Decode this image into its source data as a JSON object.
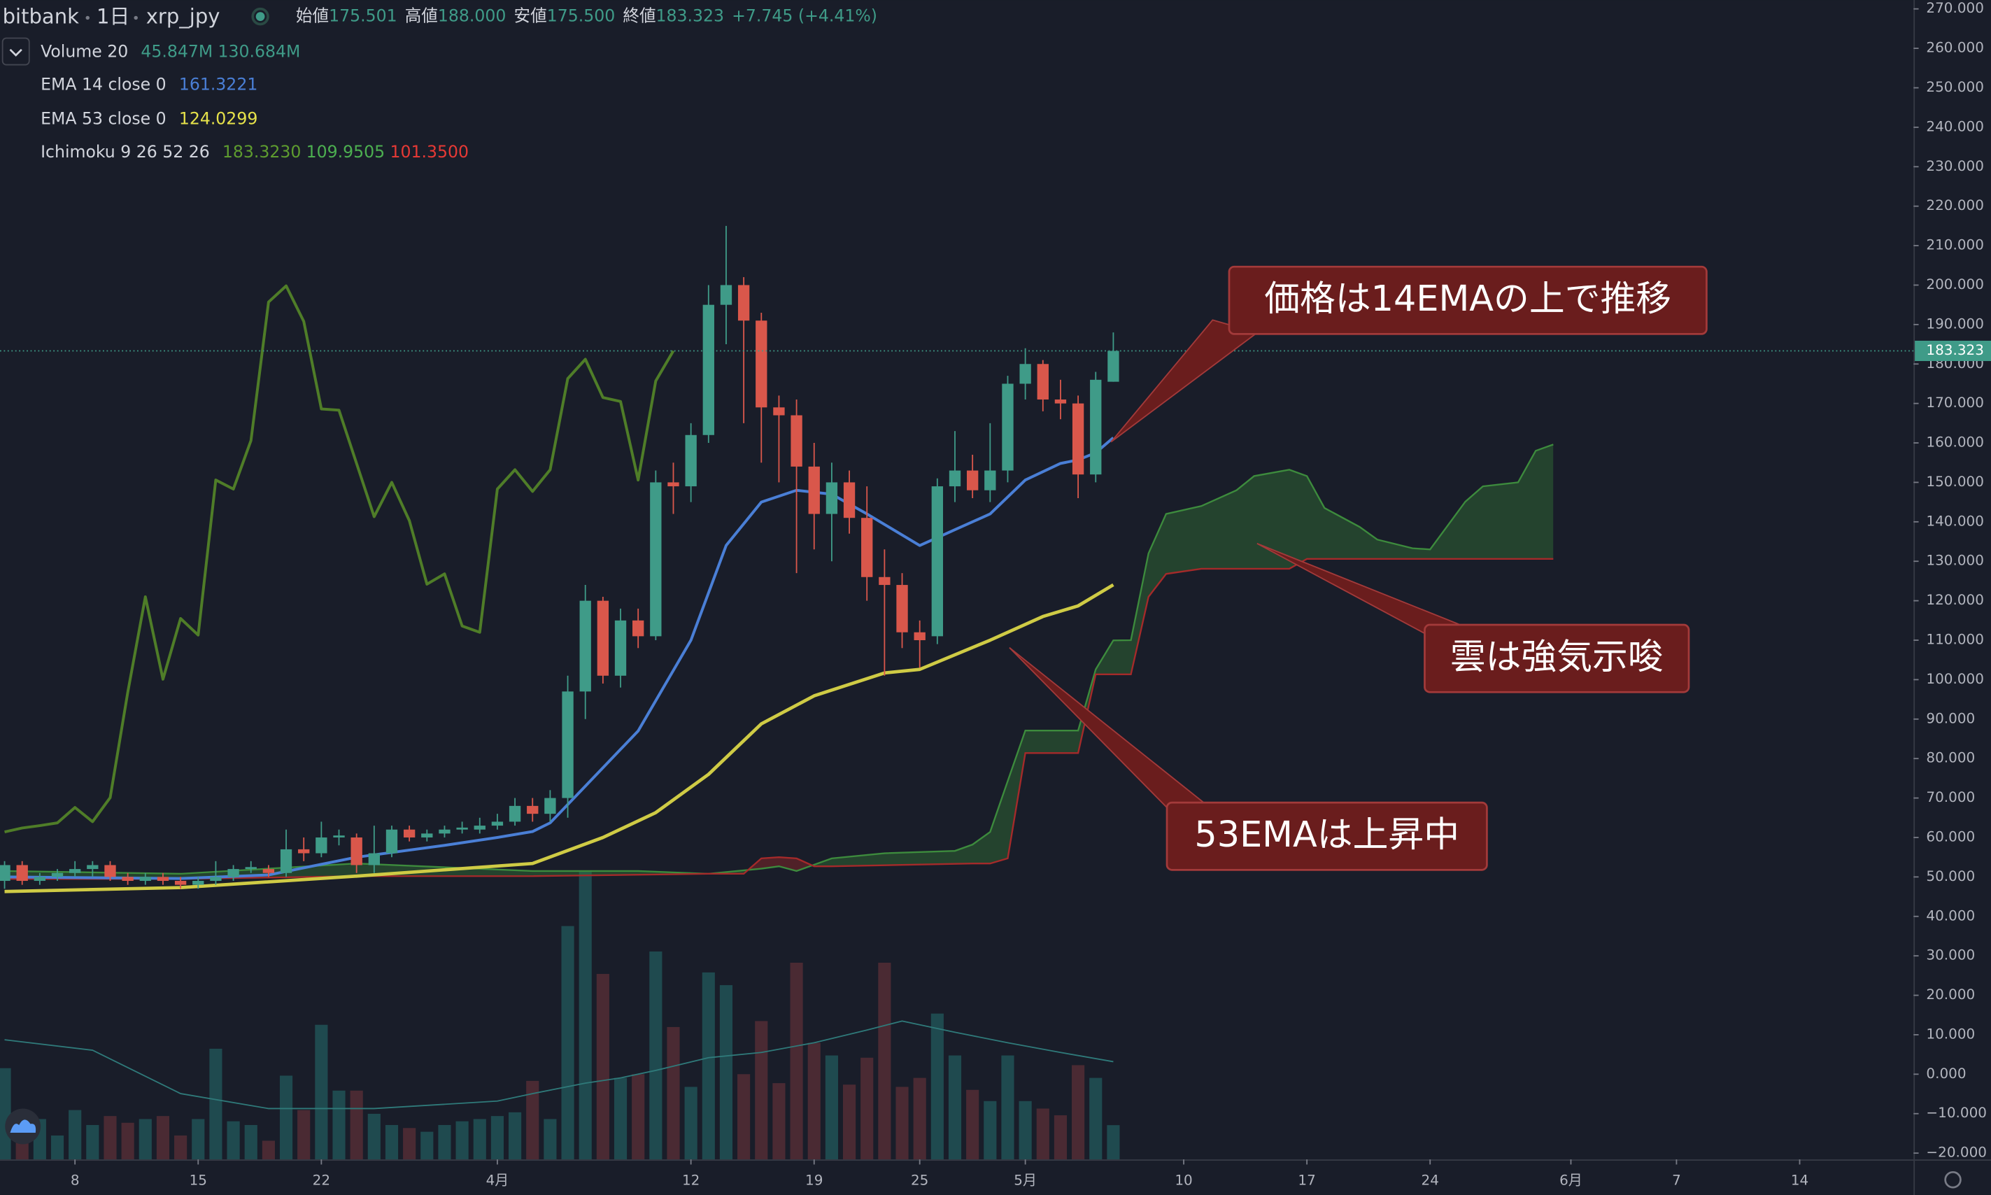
{
  "header": {
    "exchange": "bitbank",
    "interval": "1日",
    "symbol": "xrp_jpy",
    "ohlc": [
      {
        "label": "始値",
        "value": "175.501"
      },
      {
        "label": "高値",
        "value": "188.000"
      },
      {
        "label": "安値",
        "value": "175.500"
      },
      {
        "label": "終値",
        "value": "183.323"
      }
    ],
    "change": "+7.745 (+4.41%)"
  },
  "legend": [
    {
      "name": "Volume 20",
      "values": [
        {
          "text": "45.847M",
          "color": "#3f9b88"
        },
        {
          "text": "130.684M",
          "color": "#3f9b88"
        }
      ]
    },
    {
      "name": "EMA 14 close 0",
      "values": [
        {
          "text": "161.3221",
          "color": "#4a7fd6"
        }
      ]
    },
    {
      "name": "EMA 53 close 0",
      "values": [
        {
          "text": "124.0299",
          "color": "#e6e24a"
        }
      ]
    },
    {
      "name": "Ichimoku 9 26 52 26",
      "values": [
        {
          "text": "183.3230",
          "color": "#5e9c2f"
        },
        {
          "text": "109.9505",
          "color": "#4caf50"
        },
        {
          "text": "101.3500",
          "color": "#e53935"
        }
      ]
    }
  ],
  "chart_data": {
    "type": "candlestick",
    "x": [
      0,
      1,
      2,
      3,
      4,
      5,
      6,
      7,
      8,
      9,
      10,
      11,
      12,
      13,
      14,
      15,
      16,
      17,
      18,
      19,
      20,
      21,
      22,
      23,
      24,
      25,
      26,
      27,
      28,
      29,
      30,
      31,
      32,
      33,
      34,
      35,
      36,
      37,
      38,
      39,
      40,
      41,
      42,
      43,
      44,
      45,
      46,
      47,
      48,
      49,
      50,
      51,
      52,
      53,
      54,
      55,
      56,
      57,
      58,
      59,
      60,
      61,
      62,
      63
    ],
    "open": [
      49,
      53,
      49,
      50,
      51,
      52,
      53,
      50,
      49,
      50,
      49,
      48,
      49,
      50,
      52,
      52,
      51,
      57,
      56,
      60,
      60,
      53,
      56,
      62,
      60,
      61,
      62,
      62,
      63,
      64,
      68,
      66,
      70,
      97,
      120,
      101,
      115,
      111,
      150,
      149,
      162,
      195,
      200,
      191,
      169,
      167,
      154,
      142,
      150,
      141,
      126,
      124,
      112,
      111,
      149,
      153,
      148,
      153,
      175,
      180,
      171,
      170,
      152,
      175.501
    ],
    "high": [
      54,
      54,
      51,
      52,
      54,
      54,
      54,
      51,
      51,
      51,
      50,
      50,
      54,
      53,
      54,
      53,
      62,
      60,
      64,
      62,
      61,
      63,
      63,
      63,
      62,
      63,
      64,
      65,
      66,
      70,
      70,
      72,
      101,
      124,
      121,
      118,
      118,
      153,
      155,
      165,
      200,
      215,
      202,
      193,
      172,
      171,
      160,
      155,
      153,
      149,
      133,
      127,
      115,
      151,
      163,
      157,
      165,
      177,
      184,
      181,
      176,
      172,
      178,
      188
    ],
    "low": [
      47,
      48,
      48,
      49,
      50,
      50,
      49,
      48,
      48,
      48,
      47,
      47,
      48,
      49,
      51,
      50,
      50,
      54,
      55,
      58,
      51,
      51,
      55,
      59,
      59,
      60,
      61,
      61,
      62,
      63,
      64,
      64,
      65,
      90,
      99,
      98,
      108,
      110,
      142,
      145,
      160,
      185,
      165,
      155,
      150,
      127,
      133,
      130,
      137,
      120,
      101,
      108,
      103,
      109,
      145,
      146,
      145,
      150,
      171,
      168,
      166,
      146,
      150,
      175.5
    ],
    "close": [
      53,
      49,
      50,
      51,
      52,
      53,
      50,
      49,
      50,
      49,
      48,
      49,
      50,
      52,
      52.5,
      51,
      57,
      56,
      60,
      60.5,
      53,
      56,
      62,
      60,
      61,
      62,
      62.5,
      63,
      64,
      68,
      66,
      70,
      97,
      120,
      101,
      115,
      111,
      150,
      149,
      162,
      195,
      200,
      191,
      169,
      167,
      154,
      142,
      150,
      141,
      126,
      124,
      112,
      110,
      149,
      153,
      148,
      153,
      175,
      180,
      171,
      170,
      152,
      176,
      183.323
    ],
    "up_color": "#3f9b88",
    "down_color": "#d9574b",
    "volume": {
      "axis": "y2",
      "up_color": "#1f4a4f",
      "down_color": "#4a2a33",
      "values": [
        122,
        46,
        54,
        32,
        66,
        46,
        58,
        49,
        54,
        58,
        32,
        54,
        148,
        51,
        46,
        25,
        112,
        66,
        180,
        92,
        92,
        61,
        46,
        42,
        37,
        46,
        51,
        54,
        58,
        63,
        105,
        54,
        312,
        385,
        248,
        109,
        114,
        278,
        177,
        97,
        250,
        233,
        114,
        185,
        102,
        263,
        156,
        139,
        100,
        136,
        263,
        97,
        109,
        195,
        139,
        93,
        78,
        139,
        78,
        68,
        59,
        126,
        109,
        45.847
      ]
    },
    "series": [
      {
        "axis": "y2",
        "color": "#2f7a7a",
        "width": 1,
        "x": [
          0,
          5,
          10,
          15,
          21,
          28,
          30,
          33,
          35,
          37,
          40,
          43,
          46,
          49,
          51,
          54,
          57,
          60,
          63
        ],
        "values": [
          160,
          146,
          88,
          68,
          68,
          78,
          88,
          102,
          109,
          119,
          136,
          143,
          156,
          173,
          185,
          170,
          156,
          143,
          130.684
        ]
      },
      {
        "color": "#4a7fd6",
        "width": 2.2,
        "x": [
          0,
          5,
          10,
          15,
          20,
          25,
          28,
          30,
          31,
          33,
          36,
          39,
          41,
          43,
          45,
          47,
          49,
          52,
          54,
          56,
          58,
          60,
          61,
          62,
          63
        ],
        "values": [
          50,
          49.8,
          49.6,
          50.5,
          55,
          58,
          60,
          61.5,
          63.7,
          73,
          87,
          110,
          134,
          145,
          148,
          147,
          142,
          134,
          138,
          142,
          150.6,
          154.8,
          155.7,
          157.5,
          161.3221
        ]
      },
      {
        "color": "#cfcb45",
        "width": 2.6,
        "x": [
          0,
          10,
          20,
          30,
          34,
          37,
          40,
          43,
          46,
          50,
          52,
          56,
          59,
          61,
          63
        ],
        "values": [
          46.3,
          47.3,
          50.2,
          53.4,
          60,
          66.3,
          76,
          88.8,
          95.9,
          101.7,
          102.6,
          110,
          116,
          118.7,
          124.0299
        ]
      },
      {
        "color": "#4f7d28",
        "width": 2.2,
        "x": [
          0,
          1,
          2,
          3,
          4,
          5,
          6,
          7,
          8,
          9,
          10,
          11,
          12,
          13,
          14,
          15,
          16,
          17,
          18,
          19,
          20,
          21,
          22,
          23,
          24,
          25,
          26,
          27,
          28,
          29,
          30,
          31,
          32,
          33,
          34,
          35,
          36,
          37,
          38
        ],
        "values": [
          61.4,
          62.4,
          63,
          63.7,
          67.6,
          64,
          70.1,
          96.8,
          121,
          100.1,
          115.5,
          111.3,
          150.6,
          148.3,
          160.6,
          195.7,
          199.8,
          190.8,
          168.6,
          168.3,
          154.8,
          141.3,
          150,
          140.3,
          124.2,
          126.8,
          113.6,
          112,
          148.3,
          153.2,
          147.7,
          153.2,
          176.3,
          181.2,
          171.5,
          170.5,
          150.6,
          175.7,
          183.323
        ]
      }
    ],
    "cloud": {
      "x_a": [
        0,
        10,
        20,
        30,
        36,
        40,
        43,
        44,
        45,
        47,
        50,
        54,
        55,
        56,
        57,
        58,
        61,
        62,
        63,
        64,
        65,
        66,
        68,
        70,
        71,
        73,
        74,
        75,
        77,
        78,
        80,
        81,
        83,
        84,
        86,
        87,
        88
      ],
      "span_a": [
        51.5,
        50.8,
        53.4,
        51.5,
        51.5,
        50.8,
        52.1,
        52.7,
        51.5,
        54.7,
        56,
        56.6,
        58.2,
        61.4,
        74.3,
        87.1,
        87.1,
        102.6,
        109.9505,
        110,
        132,
        142,
        144,
        148,
        151.6,
        153.2,
        151.6,
        143.5,
        138.7,
        135.5,
        133.3,
        133,
        145.1,
        149,
        150,
        158,
        159.6
      ],
      "x_b": [
        0,
        10,
        20,
        30,
        40,
        42,
        43,
        44,
        45,
        46,
        47,
        55,
        56,
        57,
        58,
        61,
        62,
        64,
        65,
        66,
        68,
        73,
        74,
        88
      ],
      "span_b": [
        49.5,
        49.5,
        50.2,
        50.2,
        50.8,
        50.8,
        54.7,
        55,
        54.7,
        52.7,
        52.7,
        53.4,
        53.4,
        54.7,
        81.4,
        81.4,
        101.35,
        101.35,
        121,
        126.8,
        128.1,
        128.1,
        130.6,
        130.6
      ],
      "color_a": "#3d8b3d",
      "color_b": "#a52a2a",
      "fill_up": "rgba(56,130,56,0.38)",
      "fill_down": "rgba(170,40,40,0.38)"
    },
    "last_price": 183.323,
    "last_price_color": "#3f9b88",
    "xlim": [
      -0.26,
      108.47
    ],
    "xticks": [
      {
        "value": 4,
        "label": "8"
      },
      {
        "value": 11,
        "label": "15"
      },
      {
        "value": 18,
        "label": "22"
      },
      {
        "value": 28,
        "label": "4月"
      },
      {
        "value": 39,
        "label": "12"
      },
      {
        "value": 46,
        "label": "19"
      },
      {
        "value": 52,
        "label": "25"
      },
      {
        "value": 58,
        "label": "5月"
      },
      {
        "value": 67,
        "label": "10"
      },
      {
        "value": 74,
        "label": "17"
      },
      {
        "value": 81,
        "label": "24"
      },
      {
        "value": 89,
        "label": "6月"
      },
      {
        "value": 95,
        "label": "7"
      },
      {
        "value": 102,
        "label": "14"
      }
    ],
    "ylim": [
      -21.6,
      272.25
    ],
    "yticks": [
      {
        "value": 270,
        "label": "270.000"
      },
      {
        "value": 260,
        "label": "260.000"
      },
      {
        "value": 250,
        "label": "250.000"
      },
      {
        "value": 240,
        "label": "240.000"
      },
      {
        "value": 230,
        "label": "230.000"
      },
      {
        "value": 220,
        "label": "220.000"
      },
      {
        "value": 210,
        "label": "210.000"
      },
      {
        "value": 200,
        "label": "200.000"
      },
      {
        "value": 190,
        "label": "190.000"
      },
      {
        "value": 180,
        "label": "180.000"
      },
      {
        "value": 170,
        "label": "170.000"
      },
      {
        "value": 160,
        "label": "160.000"
      },
      {
        "value": 150,
        "label": "150.000"
      },
      {
        "value": 140,
        "label": "140.000"
      },
      {
        "value": 130,
        "label": "130.000"
      },
      {
        "value": 120,
        "label": "120.000"
      },
      {
        "value": 110,
        "label": "110.000"
      },
      {
        "value": 100,
        "label": "100.000"
      },
      {
        "value": 90,
        "label": "90.000"
      },
      {
        "value": 80,
        "label": "80.000"
      },
      {
        "value": 70,
        "label": "70.000"
      },
      {
        "value": 60,
        "label": "60.000"
      },
      {
        "value": 50,
        "label": "50.000"
      },
      {
        "value": 40,
        "label": "40.000"
      },
      {
        "value": 30,
        "label": "30.000"
      },
      {
        "value": 20,
        "label": "20.000"
      },
      {
        "value": 10,
        "label": "10.000"
      },
      {
        "value": 0,
        "label": "0.000"
      },
      {
        "value": -10,
        "label": "−10.000"
      },
      {
        "value": -20,
        "label": "−20.000"
      }
    ],
    "y2lim": [
      0,
      1550
    ],
    "annotations": [
      {
        "text": "価格は14EMAの上で推移"
      },
      {
        "text": "雲は強気示唆"
      },
      {
        "text": "53EMAは上昇中"
      }
    ]
  }
}
